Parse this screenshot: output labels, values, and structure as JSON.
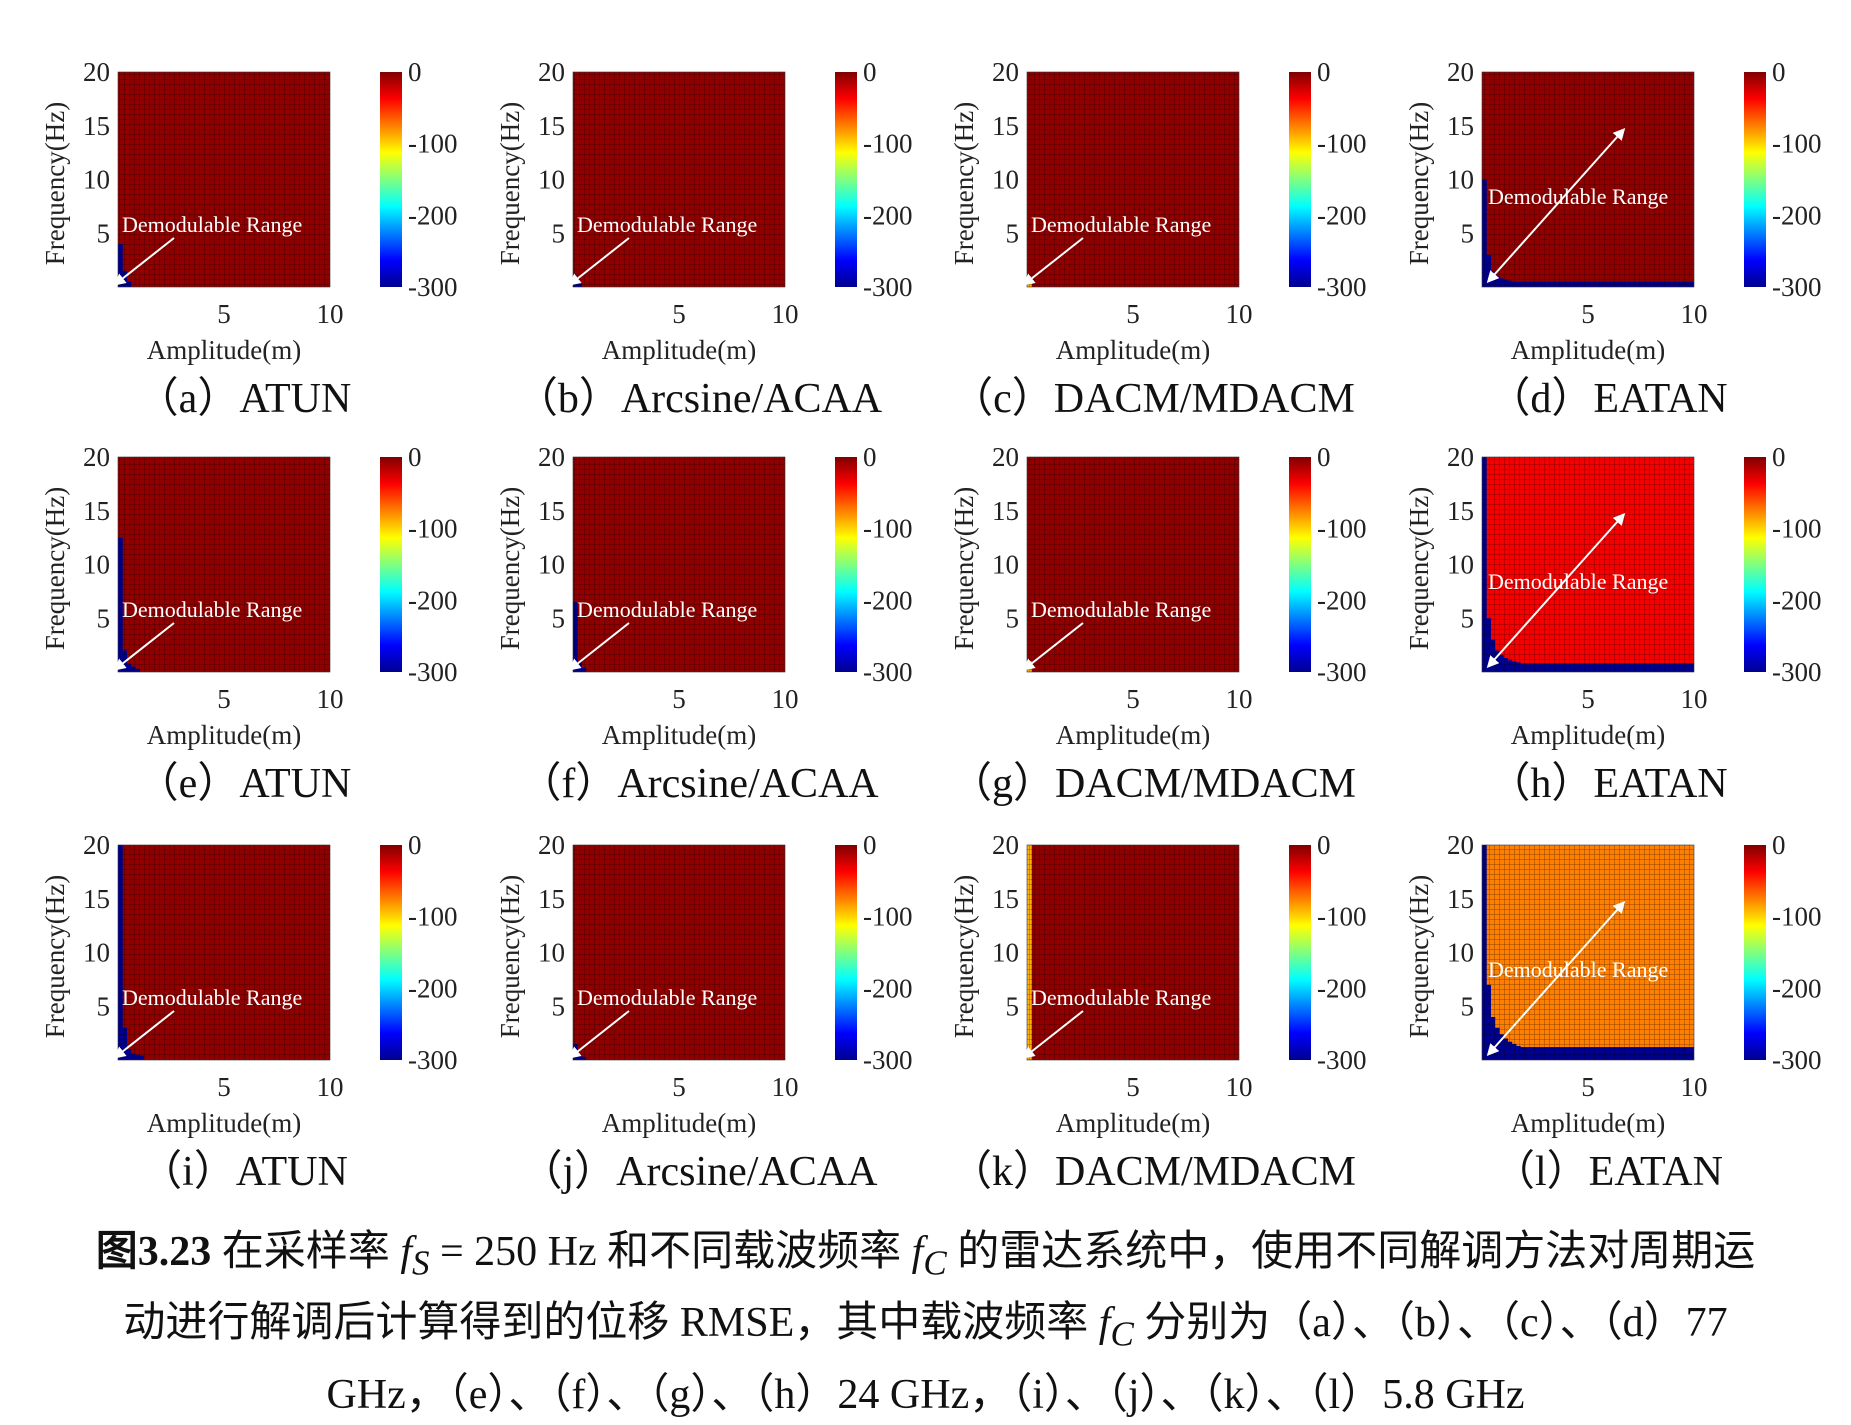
{
  "colorbar": {
    "ticks": [
      "0",
      "-100",
      "-200",
      "-300"
    ]
  },
  "chart_data": [
    {
      "type": "heatmap",
      "panel": "a",
      "caption": "（a）ATUN",
      "xlabel": "Amplitude(m)",
      "ylabel": "Frequency(Hz)",
      "xticks": [
        "5",
        "10"
      ],
      "yticks": [
        "5",
        "10",
        "15",
        "20"
      ],
      "xlim": [
        0,
        10
      ],
      "ylim": [
        0,
        20
      ],
      "clim": [
        -300,
        0
      ],
      "annotation": "Demodulable Range",
      "background_value": -5,
      "region_value": -300,
      "failure_boundary_freq": [
        4,
        1.5,
        0.5
      ]
    },
    {
      "type": "heatmap",
      "panel": "b",
      "caption": "（b）Arcsine/ACAA",
      "xlabel": "Amplitude(m)",
      "ylabel": "Frequency(Hz)",
      "xticks": [
        "5",
        "10"
      ],
      "yticks": [
        "5",
        "10",
        "15",
        "20"
      ],
      "xlim": [
        0,
        10
      ],
      "ylim": [
        0,
        20
      ],
      "clim": [
        -300,
        0
      ],
      "annotation": "Demodulable Range",
      "background_value": -5,
      "region_value": -300,
      "failure_boundary_freq": [
        1,
        0.3
      ]
    },
    {
      "type": "heatmap",
      "panel": "c",
      "caption": "（c）DACM/MDACM",
      "xlabel": "Amplitude(m)",
      "ylabel": "Frequency(Hz)",
      "xticks": [
        "5",
        "10"
      ],
      "yticks": [
        "5",
        "10",
        "15",
        "20"
      ],
      "xlim": [
        0,
        10
      ],
      "ylim": [
        0,
        20
      ],
      "clim": [
        -300,
        0
      ],
      "annotation": "Demodulable Range",
      "background_value": -5,
      "region_value": -90,
      "failure_boundary_freq": [
        0.6
      ]
    },
    {
      "type": "heatmap",
      "panel": "d",
      "caption": "（d）EATAN",
      "xlabel": "Amplitude(m)",
      "ylabel": "Frequency(Hz)",
      "xticks": [
        "5",
        "10"
      ],
      "yticks": [
        "5",
        "10",
        "15",
        "20"
      ],
      "xlim": [
        0,
        10
      ],
      "ylim": [
        0,
        20
      ],
      "clim": [
        -300,
        0
      ],
      "annotation": "Demodulable Range",
      "background_value": -5,
      "region_value": -300,
      "failure_boundary_freq": [
        10,
        3,
        1.5,
        1,
        0.8,
        0.7,
        0.6,
        0.5,
        0.5,
        0.5
      ]
    },
    {
      "type": "heatmap",
      "panel": "e",
      "caption": "（e）ATUN",
      "xlabel": "Amplitude(m)",
      "ylabel": "Frequency(Hz)",
      "xticks": [
        "5",
        "10"
      ],
      "yticks": [
        "5",
        "10",
        "15",
        "20"
      ],
      "xlim": [
        0,
        10
      ],
      "ylim": [
        0,
        20
      ],
      "clim": [
        -300,
        0
      ],
      "annotation": "Demodulable Range",
      "background_value": -5,
      "region_value": -300,
      "failure_boundary_freq": [
        12.5,
        2,
        0.8,
        0.5,
        0.3
      ]
    },
    {
      "type": "heatmap",
      "panel": "f",
      "caption": "（f）Arcsine/ACAA",
      "xlabel": "Amplitude(m)",
      "ylabel": "Frequency(Hz)",
      "xticks": [
        "5",
        "10"
      ],
      "yticks": [
        "5",
        "10",
        "15",
        "20"
      ],
      "xlim": [
        0,
        10
      ],
      "ylim": [
        0,
        20
      ],
      "clim": [
        -300,
        0
      ],
      "annotation": "Demodulable Range",
      "background_value": -5,
      "region_value": -300,
      "failure_boundary_freq": [
        6.5,
        1,
        0.4
      ]
    },
    {
      "type": "heatmap",
      "panel": "g",
      "caption": "（g）DACM/MDACM",
      "xlabel": "Amplitude(m)",
      "ylabel": "Frequency(Hz)",
      "xticks": [
        "5",
        "10"
      ],
      "yticks": [
        "5",
        "10",
        "15",
        "20"
      ],
      "xlim": [
        0,
        10
      ],
      "ylim": [
        0,
        20
      ],
      "clim": [
        -300,
        0
      ],
      "annotation": "Demodulable Range",
      "background_value": -5,
      "region_value": -90,
      "failure_boundary_freq": [
        1
      ]
    },
    {
      "type": "heatmap",
      "panel": "h",
      "caption": "（h）EATAN",
      "xlabel": "Amplitude(m)",
      "ylabel": "Frequency(Hz)",
      "xticks": [
        "5",
        "10"
      ],
      "yticks": [
        "5",
        "10",
        "15",
        "20"
      ],
      "xlim": [
        0,
        10
      ],
      "ylim": [
        0,
        20
      ],
      "clim": [
        -300,
        0
      ],
      "annotation": "Demodulable Range",
      "background_value": -35,
      "region_value": -300,
      "failure_boundary_freq": [
        20,
        5,
        3,
        2,
        1.6,
        1.3,
        1.1,
        1,
        0.9,
        0.8
      ]
    },
    {
      "type": "heatmap",
      "panel": "i",
      "caption": "（i）ATUN",
      "xlabel": "Amplitude(m)",
      "ylabel": "Frequency(Hz)",
      "xticks": [
        "5",
        "10"
      ],
      "yticks": [
        "5",
        "10",
        "15",
        "20"
      ],
      "xlim": [
        0,
        10
      ],
      "ylim": [
        0,
        20
      ],
      "clim": [
        -300,
        0
      ],
      "annotation": "Demodulable Range",
      "background_value": -5,
      "region_value": -300,
      "failure_boundary_freq": [
        20,
        3,
        1,
        0.6,
        0.5,
        0.4
      ]
    },
    {
      "type": "heatmap",
      "panel": "j",
      "caption": "（j）Arcsine/ACAA",
      "xlabel": "Amplitude(m)",
      "ylabel": "Frequency(Hz)",
      "xticks": [
        "5",
        "10"
      ],
      "yticks": [
        "5",
        "10",
        "15",
        "20"
      ],
      "xlim": [
        0,
        10
      ],
      "ylim": [
        0,
        20
      ],
      "clim": [
        -300,
        0
      ],
      "annotation": "Demodulable Range",
      "background_value": -5,
      "region_value": -300,
      "failure_boundary_freq": [
        1.5,
        0.5,
        0.3
      ]
    },
    {
      "type": "heatmap",
      "panel": "k",
      "caption": "（k）DACM/MDACM",
      "xlabel": "Amplitude(m)",
      "ylabel": "Frequency(Hz)",
      "xticks": [
        "5",
        "10"
      ],
      "yticks": [
        "5",
        "10",
        "15",
        "20"
      ],
      "xlim": [
        0,
        10
      ],
      "ylim": [
        0,
        20
      ],
      "clim": [
        -300,
        0
      ],
      "annotation": "Demodulable Range",
      "background_value": -5,
      "region_value": -90,
      "failure_boundary_freq": [
        20
      ]
    },
    {
      "type": "heatmap",
      "panel": "l",
      "caption": "（l）EATAN",
      "xlabel": "Amplitude(m)",
      "ylabel": "Frequency(Hz)",
      "xticks": [
        "5",
        "10"
      ],
      "yticks": [
        "5",
        "10",
        "15",
        "20"
      ],
      "xlim": [
        0,
        10
      ],
      "ylim": [
        0,
        20
      ],
      "clim": [
        -300,
        0
      ],
      "annotation": "Demodulable Range",
      "background_value": -75,
      "region_value": -300,
      "failure_boundary_freq": [
        20,
        7,
        4,
        3,
        2.4,
        2,
        1.7,
        1.5,
        1.3,
        1.2
      ]
    }
  ],
  "caption": {
    "number": "图3.23",
    "line1_a": "在采样率",
    "fs": "f",
    "fs_sub": "S",
    "line1_b": "= 250 Hz 和不同载波频率",
    "fc": "f",
    "fc_sub": "C",
    "line1_c": "的雷达系统中，使用不同解调方法对周期运",
    "line2_a": "动进行解调后计算得到的位移 RMSE，其中载波频率",
    "line2_b": "分别为（a）、（b）、（c）、（d）77",
    "line3": "GHz，（e）、（f）、（g）、（h）24 GHz，（i）、（j）、（k）、（l）5.8 GHz"
  }
}
